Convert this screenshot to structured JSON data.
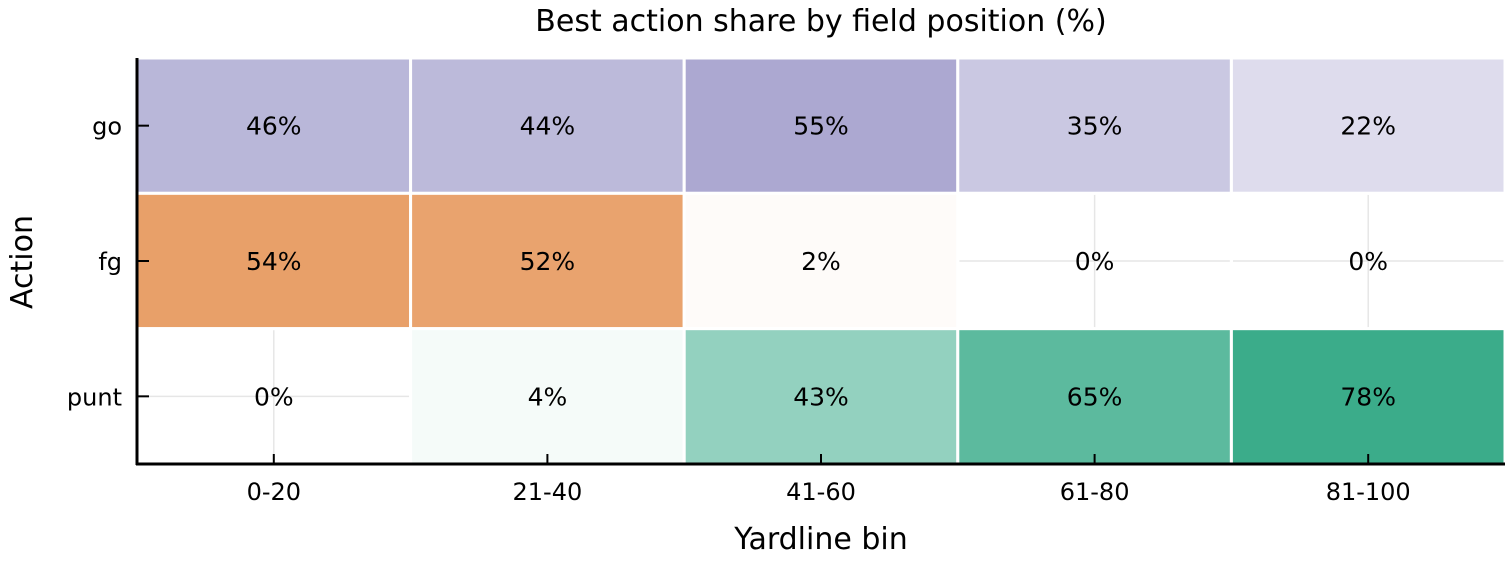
{
  "chart_data": {
    "type": "heatmap",
    "title": "Best action share by field position (%)",
    "xlabel": "Yardline bin",
    "ylabel": "Action",
    "x_categories": [
      "0-20",
      "21-40",
      "41-60",
      "61-80",
      "81-100"
    ],
    "y_categories": [
      "go",
      "fg",
      "punt"
    ],
    "values": [
      [
        46,
        44,
        55,
        35,
        22
      ],
      [
        54,
        52,
        2,
        0,
        0
      ],
      [
        0,
        4,
        43,
        65,
        78
      ]
    ],
    "cell_labels": [
      [
        "46%",
        "44%",
        "55%",
        "35%",
        "22%"
      ],
      [
        "54%",
        "52%",
        "2%",
        "0%",
        "0%"
      ],
      [
        "0%",
        "4%",
        "43%",
        "65%",
        "78%"
      ]
    ],
    "row_colors": [
      "#7570b3",
      "#d95f02",
      "#1b9e77"
    ],
    "color_scale_max": 100,
    "grid": true
  }
}
